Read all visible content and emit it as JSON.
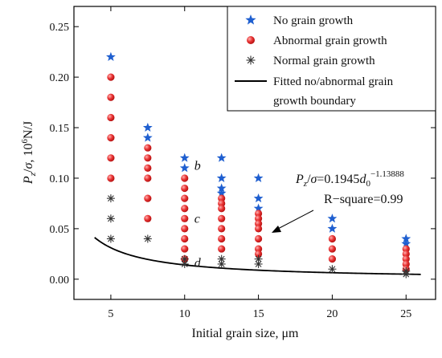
{
  "chart_data": {
    "type": "scatter",
    "xlabel": "Initial grain size, μm",
    "ylabel_main": "P",
    "ylabel_sub": "z",
    "ylabel_mid": "/",
    "ylabel_sigma": "σ",
    "ylabel_unit": ", 10",
    "ylabel_exp": "6",
    "ylabel_tail": "N/J",
    "xlim": [
      2.5,
      27
    ],
    "ylim": [
      -0.02,
      0.27
    ],
    "x_ticks": [
      5,
      10,
      15,
      20,
      25
    ],
    "x_tick_labels": [
      "5",
      "10",
      "15",
      "20",
      "25"
    ],
    "y_ticks": [
      0.0,
      0.05,
      0.1,
      0.15,
      0.2,
      0.25
    ],
    "y_tick_labels": [
      "0.00",
      "0.05",
      "0.10",
      "0.15",
      "0.20",
      "0.25"
    ],
    "legend_position": "top-right",
    "series": [
      {
        "name": "No grain growth",
        "marker": "star",
        "color": "#1f5fd0",
        "points": [
          [
            5,
            0.22
          ],
          [
            7.5,
            0.15
          ],
          [
            7.5,
            0.14
          ],
          [
            10,
            0.12
          ],
          [
            10,
            0.11
          ],
          [
            12.5,
            0.12
          ],
          [
            12.5,
            0.1
          ],
          [
            12.5,
            0.09
          ],
          [
            12.5,
            0.085
          ],
          [
            15,
            0.1
          ],
          [
            15,
            0.08
          ],
          [
            15,
            0.07
          ],
          [
            20,
            0.06
          ],
          [
            20,
            0.05
          ],
          [
            25,
            0.04
          ],
          [
            25,
            0.035
          ]
        ]
      },
      {
        "name": "Abnormal grain growth",
        "marker": "circle",
        "color": "#e03030",
        "points": [
          [
            5,
            0.2
          ],
          [
            5,
            0.18
          ],
          [
            5,
            0.16
          ],
          [
            5,
            0.14
          ],
          [
            5,
            0.12
          ],
          [
            5,
            0.1
          ],
          [
            7.5,
            0.13
          ],
          [
            7.5,
            0.12
          ],
          [
            7.5,
            0.11
          ],
          [
            7.5,
            0.1
          ],
          [
            7.5,
            0.08
          ],
          [
            7.5,
            0.06
          ],
          [
            10,
            0.1
          ],
          [
            10,
            0.09
          ],
          [
            10,
            0.08
          ],
          [
            10,
            0.07
          ],
          [
            10,
            0.06
          ],
          [
            10,
            0.05
          ],
          [
            10,
            0.04
          ],
          [
            10,
            0.03
          ],
          [
            10,
            0.02
          ],
          [
            12.5,
            0.08
          ],
          [
            12.5,
            0.075
          ],
          [
            12.5,
            0.07
          ],
          [
            12.5,
            0.06
          ],
          [
            12.5,
            0.05
          ],
          [
            12.5,
            0.04
          ],
          [
            12.5,
            0.03
          ],
          [
            15,
            0.065
          ],
          [
            15,
            0.06
          ],
          [
            15,
            0.055
          ],
          [
            15,
            0.05
          ],
          [
            15,
            0.04
          ],
          [
            15,
            0.03
          ],
          [
            15,
            0.025
          ],
          [
            20,
            0.04
          ],
          [
            20,
            0.03
          ],
          [
            20,
            0.02
          ],
          [
            25,
            0.03
          ],
          [
            25,
            0.025
          ],
          [
            25,
            0.02
          ],
          [
            25,
            0.015
          ],
          [
            25,
            0.01
          ]
        ]
      },
      {
        "name": "Normal grain growth",
        "marker": "asterisk",
        "color": "#333333",
        "points": [
          [
            5,
            0.08
          ],
          [
            5,
            0.06
          ],
          [
            5,
            0.04
          ],
          [
            7.5,
            0.04
          ],
          [
            10,
            0.02
          ],
          [
            10,
            0.015
          ],
          [
            12.5,
            0.02
          ],
          [
            12.5,
            0.015
          ],
          [
            15,
            0.02
          ],
          [
            15,
            0.015
          ],
          [
            20,
            0.01
          ],
          [
            25,
            0.008
          ],
          [
            25,
            0.005
          ]
        ]
      }
    ],
    "fit": {
      "name": "Fitted no/abnormal grain growth boundary",
      "name_line1": "Fitted no/abnormal grain",
      "name_line2": "growth boundary",
      "coef": 0.1945,
      "exponent": -1.13888,
      "x_range": [
        3.9,
        26
      ],
      "color": "#000000"
    },
    "legend": {
      "items": [
        "No grain growth",
        "Abnormal grain growth",
        "Normal grain growth"
      ]
    },
    "annotations": {
      "eq_prefix": "P",
      "eq_sub": "z",
      "eq_mid": "/",
      "eq_sigma": "σ",
      "eq_rhs": "=0.1945",
      "eq_d": "d",
      "eq_d_sub": "0",
      "eq_exp": "−1.13888",
      "r_square": "R−square=0.99",
      "label_b": "b",
      "label_c": "c",
      "label_d": "d",
      "label_b_at": [
        10,
        0.11
      ],
      "label_c_at": [
        10,
        0.06
      ],
      "label_d_at": [
        10,
        0.02
      ]
    }
  }
}
